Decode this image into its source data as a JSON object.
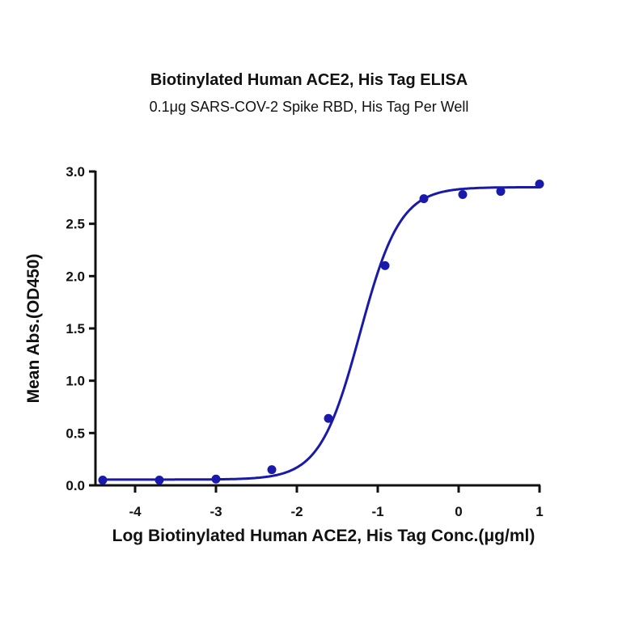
{
  "chart_data": {
    "type": "scatter",
    "title": "Biotinylated Human ACE2, His Tag ELISA",
    "subtitle": "0.1μg SARS-COV-2 Spike RBD, His Tag Per Well",
    "xlabel": "Log Biotinylated Human ACE2, His Tag Conc.(μg/ml)",
    "ylabel": "Mean Abs.(OD450)",
    "xlim": [
      -4.5,
      1
    ],
    "ylim": [
      0,
      3.0
    ],
    "xticks": [
      -4,
      -3,
      -2,
      -1,
      0,
      1
    ],
    "yticks": [
      "0.0",
      "0.5",
      "1.0",
      "1.5",
      "2.0",
      "2.5",
      "3.0"
    ],
    "grid": false,
    "legend": null,
    "series": [
      {
        "name": "Mean Abs.",
        "color": "#1a1aaa",
        "x": [
          -4.4,
          -3.7,
          -3.0,
          -2.31,
          -1.61,
          -0.91,
          -0.43,
          0.05,
          0.52,
          1.0
        ],
        "y": [
          0.05,
          0.05,
          0.06,
          0.15,
          0.64,
          2.1,
          2.74,
          2.78,
          2.81,
          2.88
        ],
        "fit": "4PL sigmoid"
      }
    ]
  }
}
